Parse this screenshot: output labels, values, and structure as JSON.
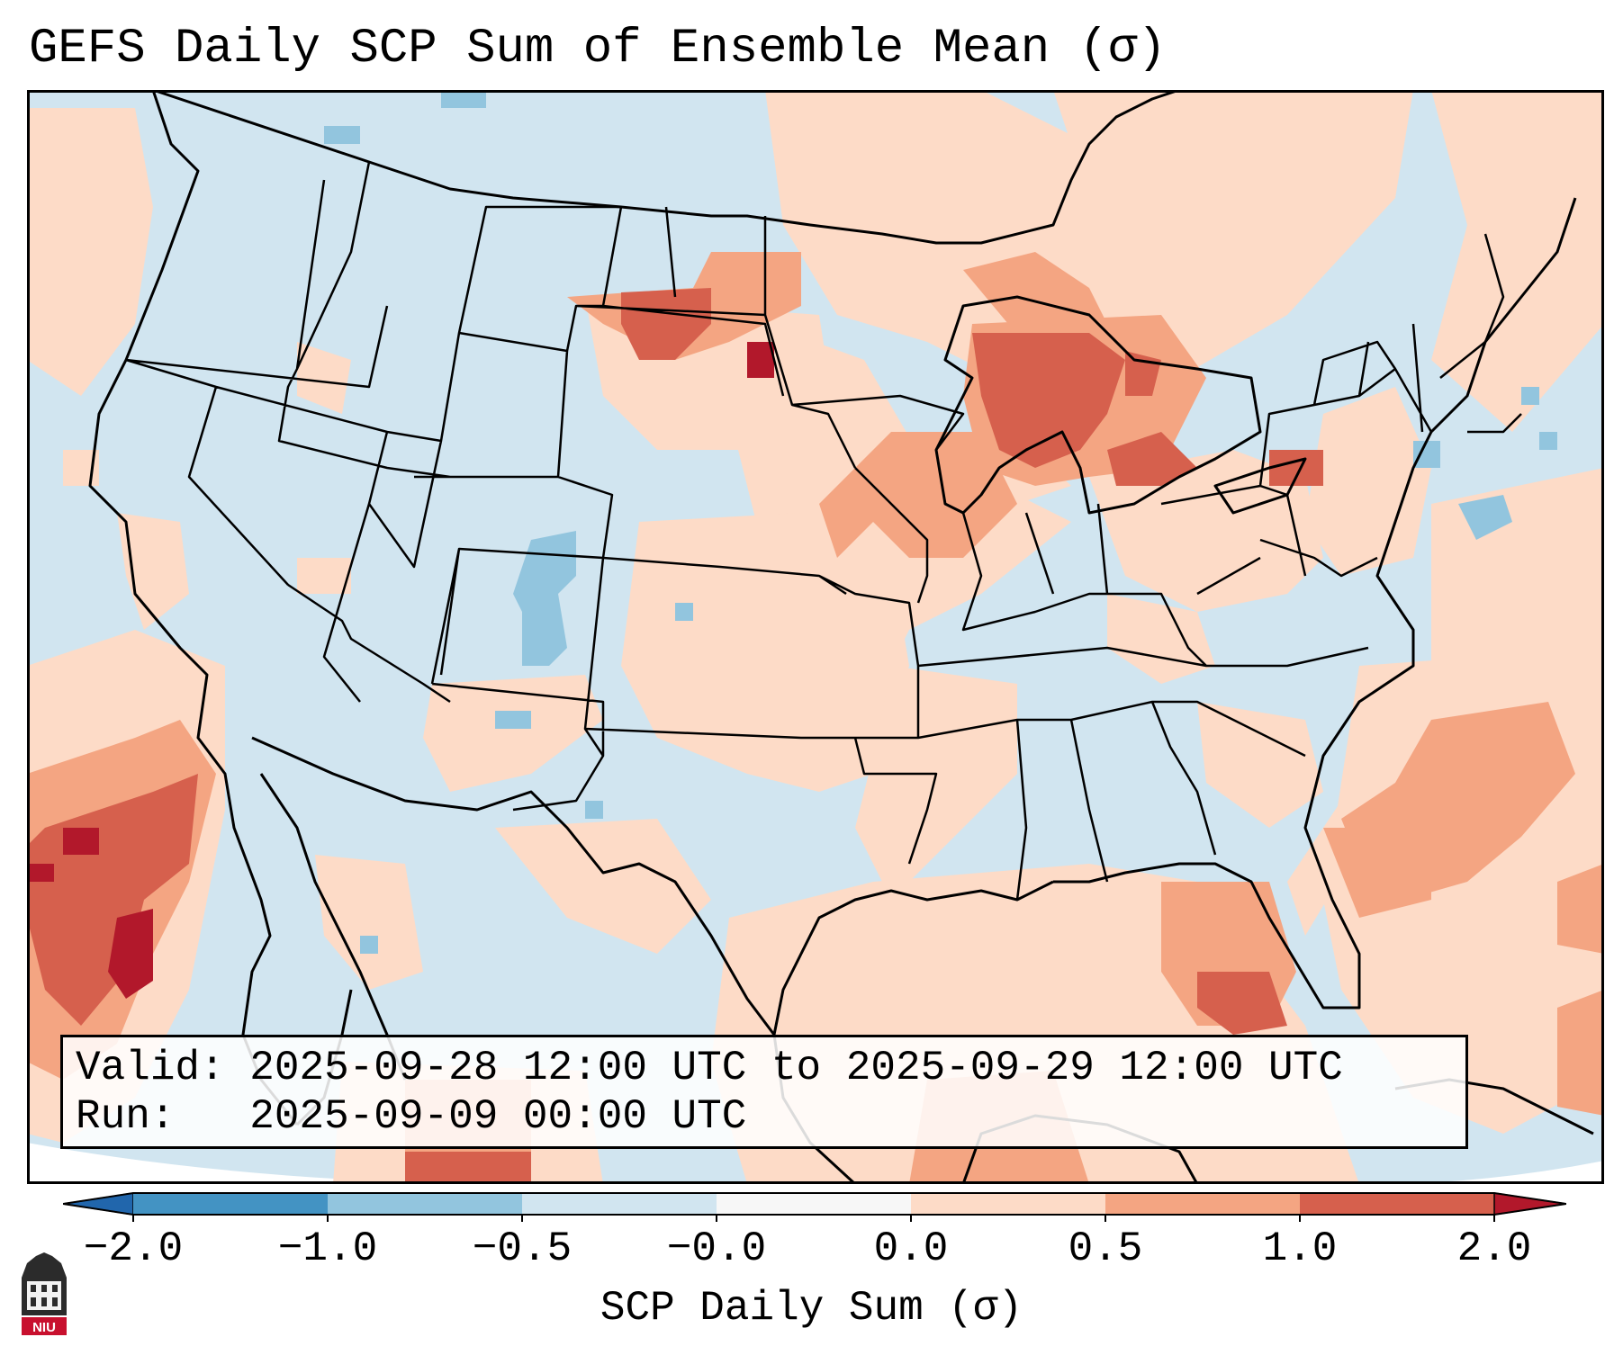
{
  "title": "GEFS Daily SCP Sum of Ensemble Mean (σ)",
  "info_box": {
    "valid_label": "Valid:",
    "valid_value": "2025-09-28 12:00 UTC to 2025-09-29 12:00 UTC",
    "run_label": "Run:",
    "run_value": "2025-09-09 00:00 UTC"
  },
  "colorbar": {
    "label": "SCP Daily Sum (σ)",
    "ticks": [
      "−2.0",
      "−1.0",
      "−0.5",
      "−0.0",
      "0.0",
      "0.5",
      "1.0",
      "2.0"
    ],
    "bins": [
      {
        "range": "-2.0 to -1.0",
        "color": "#4393c3"
      },
      {
        "range": "-1.0 to -0.5",
        "color": "#92c5de"
      },
      {
        "range": "-0.5 to -0.0",
        "color": "#d1e5f0"
      },
      {
        "range": "-0.0 to 0.0",
        "color": "#f7f7f7"
      },
      {
        "range": "0.0 to 0.5",
        "color": "#fddbc7"
      },
      {
        "range": "0.5 to 1.0",
        "color": "#f4a582"
      },
      {
        "range": "1.0 to 2.0",
        "color": "#d6604d"
      }
    ],
    "extend_low_color": "#2166ac",
    "extend_high_color": "#b2182b"
  },
  "logo": {
    "text": "NIU",
    "icon": "niu-logo-icon"
  },
  "colors": {
    "background_field": "#d1e5f0",
    "positive_light": "#fddbc7",
    "positive_mid": "#f4a582",
    "positive_strong": "#d6604d",
    "positive_max": "#b2182b",
    "negative_mid": "#92c5de"
  }
}
